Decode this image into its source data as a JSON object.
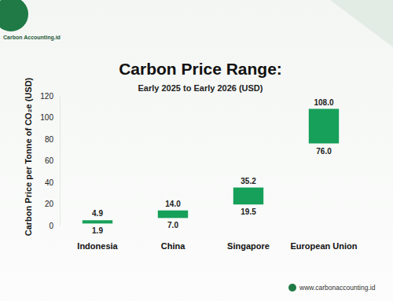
{
  "chart_data": {
    "type": "range_bar",
    "title": "Carbon Price Range:",
    "subtitle": "Early 2025 to Early 2026 (USD)",
    "y_label": "Carbon Price per Tonne of CO₂e (USD)",
    "annotations": [
      "Carbon Accounting.id",
      "www.carbonaccounting.id"
    ],
    "categories": [
      "Indonesia",
      "China",
      "Singapore",
      "European Union"
    ],
    "series": [
      {
        "values": [
          1.9,
          7.0,
          19.5,
          76.0
        ],
        "value_labels": [
          "1.9",
          "7.0",
          "19.5",
          "76.0"
        ]
      },
      {
        "values": [
          4.9,
          14.0,
          35.2,
          108.0
        ],
        "value_labels": [
          "4.9",
          "14.0",
          "35.2",
          "108.0"
        ]
      }
    ],
    "color": "#16a05a",
    "ylim": [
      0,
      120
    ],
    "yticks": [
      0,
      20,
      40,
      60,
      80,
      100,
      120
    ],
    "grid": false,
    "data_labels": true
  }
}
